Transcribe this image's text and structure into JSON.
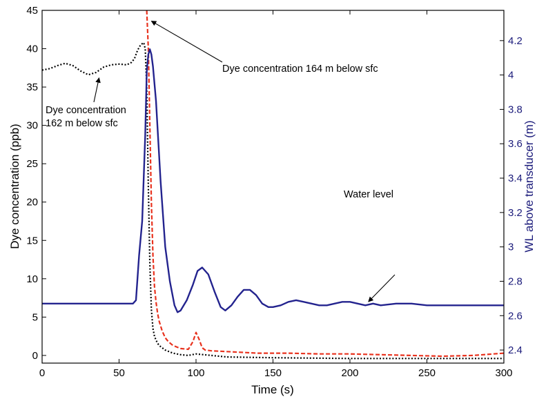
{
  "chart_data": {
    "type": "line",
    "xlabel": "Time (s)",
    "ylabel": "Dye concentration (ppb)",
    "y2label": "WL above transducer (m)",
    "xlim": [
      0,
      300
    ],
    "ylim": [
      -1,
      45
    ],
    "y2lim": [
      2.324,
      4.376
    ],
    "x_ticks": [
      0,
      50,
      100,
      150,
      200,
      250,
      300
    ],
    "y_ticks": [
      0,
      5,
      10,
      15,
      20,
      25,
      30,
      35,
      40,
      45
    ],
    "y2_ticks": [
      2.4,
      2.6,
      2.8,
      3,
      3.2,
      3.4,
      3.6,
      3.8,
      4,
      4.2
    ],
    "grid": false,
    "colors": {
      "dye_162": "#000000",
      "dye_164": "#e8321e",
      "water_level": "#23238e"
    },
    "series": [
      {
        "name": "Dye concentration 162 m below sfc",
        "axis": "left",
        "style": "dotted",
        "x": [
          0,
          5,
          10,
          15,
          20,
          25,
          30,
          35,
          40,
          45,
          50,
          55,
          58,
          60,
          62,
          64,
          66,
          67,
          68,
          69,
          70,
          71,
          72,
          73,
          74,
          75,
          76,
          78,
          80,
          85,
          90,
          95,
          100,
          105,
          110,
          120,
          150,
          200,
          250,
          300
        ],
        "y": [
          37.2,
          37.4,
          37.8,
          38.1,
          37.8,
          37.1,
          36.6,
          36.9,
          37.6,
          37.9,
          38.0,
          37.9,
          38.2,
          38.7,
          39.8,
          40.5,
          40.8,
          40.0,
          35.0,
          22.0,
          12.0,
          6.0,
          3.5,
          2.5,
          2.0,
          1.6,
          1.3,
          1.0,
          0.7,
          0.3,
          0.1,
          0.0,
          0.2,
          0.1,
          0.0,
          -0.2,
          -0.3,
          -0.4,
          -0.4,
          -0.4
        ]
      },
      {
        "name": "Dye concentration 164 m below sfc",
        "axis": "left",
        "style": "dashed",
        "x": [
          68,
          69,
          70,
          71,
          72,
          73,
          74,
          75,
          76,
          78,
          80,
          82,
          85,
          90,
          95,
          98,
          100,
          102,
          104,
          106,
          110,
          120,
          140,
          160,
          180,
          200,
          220,
          240,
          260,
          280,
          300
        ],
        "y": [
          45,
          40,
          30,
          20,
          13,
          9,
          7,
          5.5,
          4.5,
          3.2,
          2.3,
          1.8,
          1.3,
          0.9,
          0.8,
          1.8,
          3.0,
          2.1,
          1.0,
          0.7,
          0.6,
          0.5,
          0.3,
          0.3,
          0.2,
          0.2,
          0.1,
          0.0,
          -0.1,
          0.0,
          0.3
        ]
      },
      {
        "name": "Water level",
        "axis": "right",
        "style": "solid",
        "x": [
          0,
          20,
          40,
          55,
          59,
          61,
          63,
          65,
          67,
          68,
          69,
          70,
          71,
          72,
          74,
          77,
          80,
          83,
          86,
          88,
          90,
          94,
          98,
          101,
          104,
          108,
          112,
          116,
          119,
          123,
          127,
          131,
          135,
          139,
          143,
          147,
          150,
          155,
          160,
          165,
          170,
          175,
          180,
          185,
          190,
          195,
          200,
          205,
          210,
          215,
          220,
          230,
          240,
          250,
          260,
          270,
          280,
          290,
          300
        ],
        "y": [
          2.67,
          2.67,
          2.67,
          2.67,
          2.67,
          2.69,
          2.95,
          3.15,
          3.65,
          4.02,
          4.12,
          4.15,
          4.12,
          4.05,
          3.85,
          3.38,
          3.0,
          2.8,
          2.66,
          2.62,
          2.63,
          2.69,
          2.78,
          2.86,
          2.88,
          2.84,
          2.74,
          2.65,
          2.63,
          2.66,
          2.71,
          2.75,
          2.75,
          2.72,
          2.67,
          2.65,
          2.65,
          2.66,
          2.68,
          2.69,
          2.68,
          2.67,
          2.66,
          2.66,
          2.67,
          2.68,
          2.68,
          2.67,
          2.66,
          2.67,
          2.66,
          2.67,
          2.67,
          2.66,
          2.66,
          2.66,
          2.66,
          2.66,
          2.66
        ]
      }
    ],
    "annotations": [
      {
        "id": "dye-164",
        "lines": [
          "Dye concentration 164 m below sfc"
        ],
        "point_to": [
          71,
          43.6
        ]
      },
      {
        "id": "dye-162",
        "lines": [
          "Dye concentration",
          "162 m below sfc"
        ],
        "point_to": [
          37,
          36.2
        ]
      },
      {
        "id": "water-level",
        "lines": [
          "Water level"
        ],
        "point_to": [
          212,
          7.0
        ]
      }
    ]
  }
}
